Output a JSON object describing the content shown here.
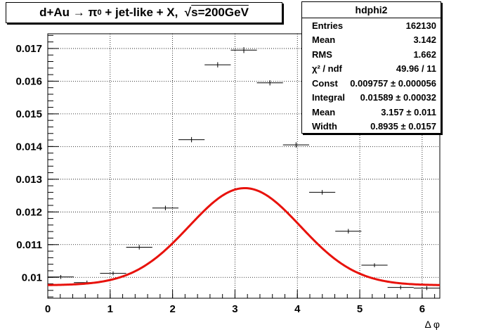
{
  "title": {
    "prefix": "d+Au",
    "arrow": "→",
    "pi_symbol": "π",
    "pi_superscript": "0",
    "suffix": " + jet-like + X,",
    "sqrt_symbol": "√",
    "energy": "s=200GeV"
  },
  "stats": {
    "name": "hdphi2",
    "rows": [
      {
        "label": "Entries",
        "value": "162130"
      },
      {
        "label": "Mean",
        "value": "3.142"
      },
      {
        "label": "RMS",
        "value": "1.662"
      },
      {
        "label": "χ² / ndf",
        "value": "49.96 / 11"
      },
      {
        "label": "Const",
        "value": "0.009757 ± 0.000056"
      },
      {
        "label": "Integral",
        "value": "0.01589 ± 0.00032"
      },
      {
        "label": "Mean",
        "value": "3.157 ± 0.011"
      },
      {
        "label": "Width",
        "value": "0.8935 ± 0.0157"
      }
    ]
  },
  "colors": {
    "fit_line": "#e8120c",
    "points": "#000000",
    "grid": "#000000",
    "background": "#ffffff"
  },
  "chart_data": {
    "type": "scatter",
    "xlabel": "Δ φ",
    "ylabel": "",
    "xlim": [
      0,
      6.283
    ],
    "ylim": [
      0.00936,
      0.01745
    ],
    "grid": true,
    "x_ticks": [
      0,
      1,
      2,
      3,
      4,
      5,
      6
    ],
    "y_ticks": [
      0.01,
      0.011,
      0.012,
      0.013,
      0.014,
      0.015,
      0.016,
      0.017
    ],
    "y_tick_labels": [
      "0.01",
      "0.011",
      "0.012",
      "0.013",
      "0.014",
      "0.015",
      "0.016",
      "0.017"
    ],
    "x_tick_labels": [
      "0",
      "1",
      "2",
      "3",
      "4",
      "5",
      "6"
    ],
    "bin_half_width": 0.2094,
    "points": [
      {
        "x": 0.209,
        "y": 0.01001,
        "err": 6e-05
      },
      {
        "x": 0.628,
        "y": 0.00984,
        "err": 6e-05
      },
      {
        "x": 1.047,
        "y": 0.01012,
        "err": 6e-05
      },
      {
        "x": 1.466,
        "y": 0.01092,
        "err": 7e-05
      },
      {
        "x": 1.885,
        "y": 0.01212,
        "err": 7e-05
      },
      {
        "x": 2.304,
        "y": 0.01421,
        "err": 8e-05
      },
      {
        "x": 2.723,
        "y": 0.0165,
        "err": 8e-05
      },
      {
        "x": 3.142,
        "y": 0.01695,
        "err": 9e-05
      },
      {
        "x": 3.56,
        "y": 0.01595,
        "err": 8e-05
      },
      {
        "x": 3.979,
        "y": 0.01405,
        "err": 8e-05
      },
      {
        "x": 4.398,
        "y": 0.0126,
        "err": 7e-05
      },
      {
        "x": 4.817,
        "y": 0.01141,
        "err": 7e-05
      },
      {
        "x": 5.236,
        "y": 0.01037,
        "err": 6e-05
      },
      {
        "x": 5.655,
        "y": 0.00969,
        "err": 6e-05
      },
      {
        "x": 6.074,
        "y": 0.00967,
        "err": 6e-05
      }
    ],
    "fit": {
      "type": "gaussian+constant",
      "const": 0.009757,
      "integral": 0.01589,
      "mean": 3.157,
      "width": 0.8935
    }
  }
}
